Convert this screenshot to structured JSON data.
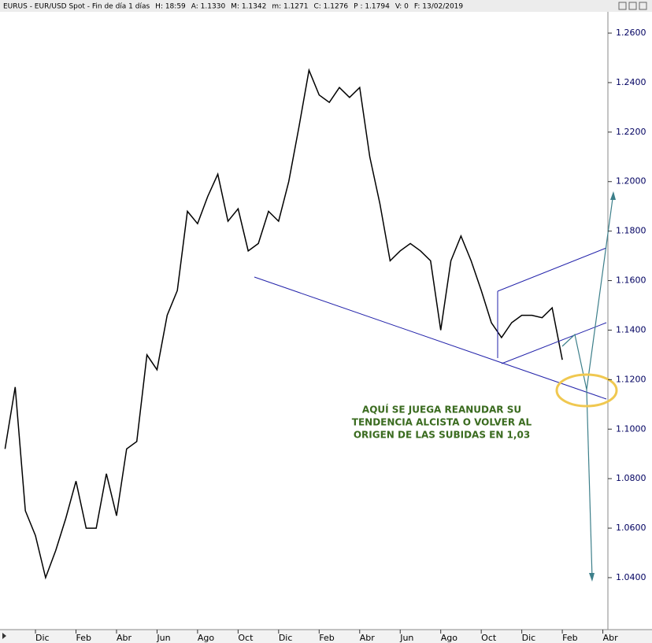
{
  "header": [
    "EURUS - EUR/USD Spot - Fin de día 1 días",
    "H: 18:59",
    "A: 1.1330",
    "M: 1.1342",
    "m: 1.1271",
    "C: 1.1276",
    "P : 1.1794",
    "V: 0",
    "F: 13/02/2019"
  ],
  "chart_data": {
    "type": "line",
    "categories": [
      null,
      null,
      null,
      "Dic",
      null,
      null,
      null,
      "Feb",
      null,
      null,
      null,
      "Abr",
      null,
      null,
      null,
      "Jun",
      null,
      null,
      null,
      "Ago",
      null,
      null,
      null,
      "Oct",
      null,
      null,
      null,
      "Dic",
      null,
      null,
      null,
      "Feb",
      null,
      null,
      null,
      "Abr",
      null,
      null,
      null,
      "Jun",
      null,
      null,
      null,
      "Ago",
      null,
      null,
      null,
      "Oct",
      null,
      null,
      null,
      "Dic",
      null,
      null,
      null,
      "Feb",
      null,
      null,
      null,
      "Abr"
    ],
    "series": [
      {
        "name": "EURUS",
        "color": "#000000",
        "values": [
          1.092,
          1.117,
          1.067,
          1.057,
          1.04,
          1.051,
          1.064,
          1.079,
          1.06,
          1.06,
          1.082,
          1.065,
          1.092,
          1.095,
          1.13,
          1.124,
          1.146,
          1.156,
          1.188,
          1.183,
          1.194,
          1.203,
          1.184,
          1.189,
          1.172,
          1.175,
          1.188,
          1.184,
          1.2,
          1.222,
          1.245,
          1.235,
          1.232,
          1.238,
          1.234,
          1.238,
          1.21,
          1.191,
          1.168,
          1.172,
          1.175,
          1.172,
          1.168,
          1.14,
          1.168,
          1.178,
          1.168,
          1.156,
          1.143,
          1.137,
          1.143,
          1.146,
          1.146,
          1.145,
          1.149,
          1.128,
          null,
          null,
          null,
          null
        ]
      }
    ],
    "ylim": [
      1.019,
      1.2686
    ],
    "yticks": [
      {
        "value": 1.04,
        "label": "1.0400"
      },
      {
        "value": 1.06,
        "label": "1.0600"
      },
      {
        "value": 1.08,
        "label": "1.0800"
      },
      {
        "value": 1.1,
        "label": "1.1000"
      },
      {
        "value": 1.12,
        "label": "1.1200"
      },
      {
        "value": 1.14,
        "label": "1.1400"
      },
      {
        "value": 1.16,
        "label": "1.1600"
      },
      {
        "value": 1.18,
        "label": "1.1800"
      },
      {
        "value": 1.2,
        "label": "1.2000"
      },
      {
        "value": 1.22,
        "label": "1.2200"
      },
      {
        "value": 1.24,
        "label": "1.2400"
      },
      {
        "value": 1.26,
        "label": "1.2600"
      }
    ],
    "annotation": [
      "AQUÍ SE JUEGA REANUDAR SU",
      "TENDENCIA ALCISTA O VOLVER AL",
      "ORIGEN DE LAS SUBIDAS EN 1,03"
    ],
    "grid": false
  }
}
